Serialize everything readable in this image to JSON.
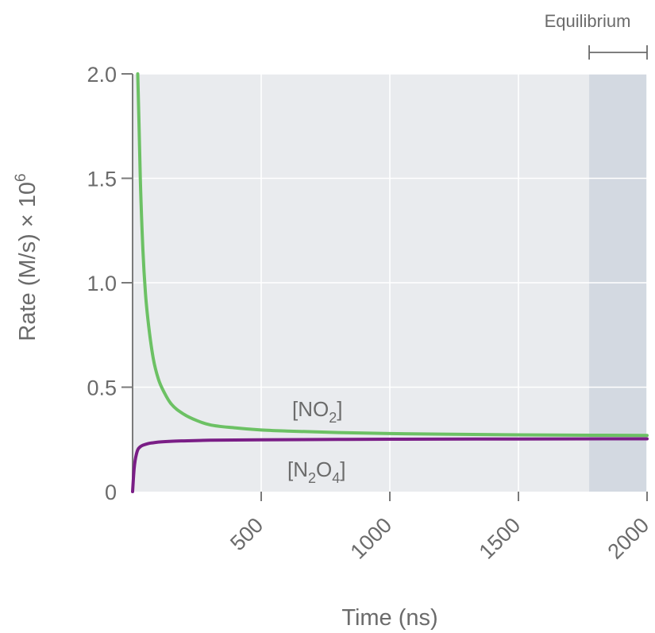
{
  "chart_data": {
    "type": "line",
    "xlabel": "Time (ns)",
    "ylabel": "Rate (M/s) × 10",
    "ylabel_exponent": "6",
    "xlim": [
      0,
      2000
    ],
    "ylim": [
      0,
      2.0
    ],
    "x_ticks": [
      {
        "value": 500,
        "label": "500"
      },
      {
        "value": 1000,
        "label": "1000"
      },
      {
        "value": 1500,
        "label": "1500"
      },
      {
        "value": 2000,
        "label": "2000"
      }
    ],
    "y_ticks": [
      {
        "value": 0,
        "label": "0"
      },
      {
        "value": 0.5,
        "label": "0.5"
      },
      {
        "value": 1.0,
        "label": "1.0"
      },
      {
        "value": 1.5,
        "label": "1.5"
      },
      {
        "value": 2.0,
        "label": "2.0"
      }
    ],
    "grid": true,
    "series": [
      {
        "name": "[NO2]",
        "label_main": "[NO",
        "label_sub": "2",
        "label_end": "]",
        "color": "#6cc164",
        "x": [
          20,
          25,
          30,
          40,
          50,
          60,
          80,
          100,
          125,
          150,
          200,
          250,
          300,
          400,
          500,
          600,
          800,
          1000,
          1200,
          1500,
          1800,
          2000
        ],
        "y": [
          2.0,
          1.76,
          1.5,
          1.16,
          0.95,
          0.82,
          0.64,
          0.54,
          0.47,
          0.42,
          0.37,
          0.34,
          0.32,
          0.305,
          0.295,
          0.29,
          0.283,
          0.278,
          0.275,
          0.272,
          0.27,
          0.269
        ]
      },
      {
        "name": "[N2O4]",
        "label_main": "[N",
        "label_sub": "2",
        "label_mid": "O",
        "label_sub2": "4",
        "label_end": "]",
        "color": "#7a1e86",
        "x": [
          0,
          3,
          6,
          10,
          15,
          20,
          30,
          40,
          60,
          80,
          100,
          150,
          200,
          300,
          500,
          800,
          1000,
          1500,
          2000
        ],
        "y": [
          0.0,
          0.06,
          0.11,
          0.15,
          0.18,
          0.2,
          0.215,
          0.222,
          0.23,
          0.234,
          0.237,
          0.241,
          0.243,
          0.246,
          0.248,
          0.25,
          0.251,
          0.252,
          0.253
        ]
      }
    ],
    "annotations": [
      {
        "text": "Equilibrium",
        "x_start": 1775,
        "x_end": 2000
      }
    ]
  }
}
